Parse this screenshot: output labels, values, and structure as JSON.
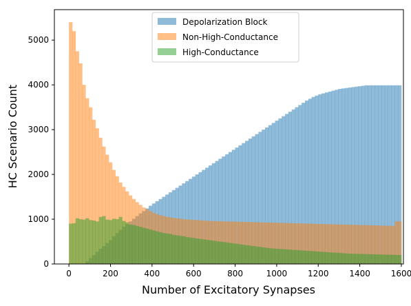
{
  "chart_data": {
    "type": "bar",
    "xlabel": "Number of Excitatory Synapses",
    "ylabel": "HC Scenario Count",
    "xlim": [
      -70,
      1610
    ],
    "ylim": [
      0,
      5680
    ],
    "xticks": [
      0,
      200,
      400,
      600,
      800,
      1000,
      1200,
      1400,
      1600
    ],
    "yticks": [
      0,
      1000,
      2000,
      3000,
      4000,
      5000
    ],
    "grid": false,
    "legend_position": "upper-center",
    "bin_start": 0,
    "bin_width": 16,
    "series": [
      {
        "name": "Depolarization Block",
        "color": "#1f77b4",
        "opacity": 0.5,
        "values": [
          0,
          0,
          0,
          0,
          0,
          60,
          130,
          200,
          270,
          340,
          400,
          470,
          530,
          620,
          690,
          760,
          830,
          890,
          950,
          1010,
          1070,
          1130,
          1180,
          1240,
          1300,
          1350,
          1400,
          1450,
          1500,
          1550,
          1600,
          1650,
          1700,
          1750,
          1800,
          1850,
          1900,
          1950,
          2000,
          2050,
          2100,
          2150,
          2200,
          2250,
          2300,
          2350,
          2400,
          2450,
          2500,
          2550,
          2600,
          2650,
          2700,
          2750,
          2800,
          2850,
          2900,
          2950,
          3000,
          3050,
          3100,
          3150,
          3200,
          3250,
          3300,
          3350,
          3400,
          3450,
          3500,
          3550,
          3600,
          3650,
          3690,
          3730,
          3760,
          3790,
          3810,
          3830,
          3850,
          3870,
          3890,
          3910,
          3920,
          3930,
          3940,
          3950,
          3960,
          3970,
          3980,
          3990,
          3990,
          3990,
          3990,
          3990,
          3990,
          3990,
          3990,
          3990,
          3990,
          3990
        ]
      },
      {
        "name": "Non-High-Conductance",
        "color": "#ff7f0e",
        "opacity": 0.5,
        "values": [
          5400,
          5200,
          4750,
          4480,
          4000,
          3700,
          3500,
          3220,
          3030,
          2820,
          2620,
          2440,
          2270,
          2100,
          1960,
          1820,
          1720,
          1620,
          1530,
          1450,
          1380,
          1320,
          1260,
          1220,
          1180,
          1140,
          1110,
          1090,
          1070,
          1050,
          1040,
          1030,
          1020,
          1010,
          1000,
          995,
          990,
          985,
          980,
          975,
          970,
          965,
          960,
          958,
          956,
          954,
          952,
          950,
          948,
          946,
          944,
          942,
          940,
          938,
          936,
          934,
          932,
          930,
          928,
          926,
          924,
          922,
          920,
          918,
          916,
          914,
          912,
          910,
          908,
          906,
          904,
          902,
          900,
          898,
          896,
          894,
          892,
          890,
          888,
          886,
          884,
          882,
          880,
          878,
          876,
          874,
          872,
          870,
          868,
          866,
          864,
          862,
          860,
          858,
          856,
          854,
          852,
          850,
          950,
          950
        ]
      },
      {
        "name": "High-Conductance",
        "color": "#2ca02c",
        "opacity": 0.5,
        "values": [
          900,
          910,
          1020,
          1000,
          990,
          1020,
          980,
          970,
          950,
          1050,
          1070,
          990,
          980,
          1010,
          1000,
          1050,
          960,
          930,
          880,
          870,
          850,
          830,
          810,
          790,
          770,
          750,
          730,
          710,
          690,
          680,
          670,
          650,
          640,
          630,
          620,
          600,
          590,
          580,
          570,
          560,
          550,
          540,
          530,
          520,
          510,
          500,
          490,
          480,
          470,
          460,
          450,
          440,
          430,
          420,
          410,
          400,
          390,
          380,
          370,
          360,
          350,
          345,
          340,
          335,
          330,
          325,
          320,
          315,
          310,
          305,
          300,
          295,
          290,
          285,
          280,
          275,
          270,
          265,
          260,
          255,
          250,
          245,
          240,
          235,
          230,
          228,
          226,
          224,
          222,
          220,
          218,
          216,
          214,
          212,
          210,
          208,
          206,
          204,
          202,
          200
        ]
      }
    ]
  }
}
